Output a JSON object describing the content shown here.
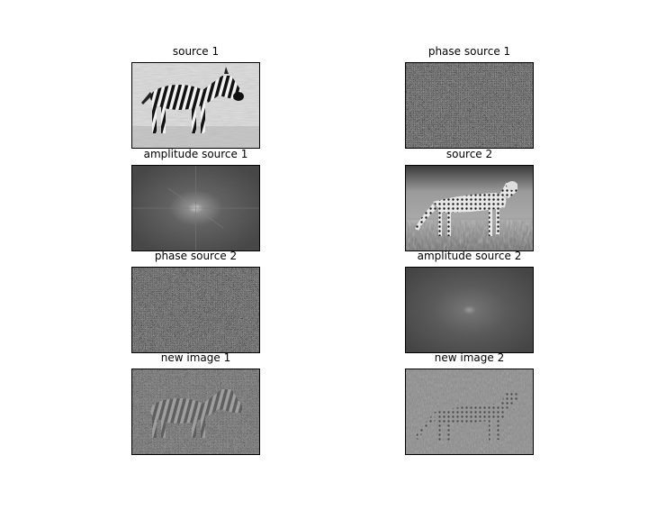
{
  "panels": [
    {
      "id": "source1",
      "title": "source 1",
      "kind": "zebra"
    },
    {
      "id": "phase1",
      "title": "phase source 1",
      "kind": "noise"
    },
    {
      "id": "amp1",
      "title": "amplitude source 1",
      "kind": "spectrum-sharp"
    },
    {
      "id": "source2",
      "title": "source 2",
      "kind": "cheetah"
    },
    {
      "id": "phase2",
      "title": "phase source 2",
      "kind": "noise"
    },
    {
      "id": "amp2",
      "title": "amplitude source 2",
      "kind": "spectrum-soft"
    },
    {
      "id": "new1",
      "title": "new image 1",
      "kind": "zebra-ghost"
    },
    {
      "id": "new2",
      "title": "new image 2",
      "kind": "cheetah-ghost"
    }
  ]
}
